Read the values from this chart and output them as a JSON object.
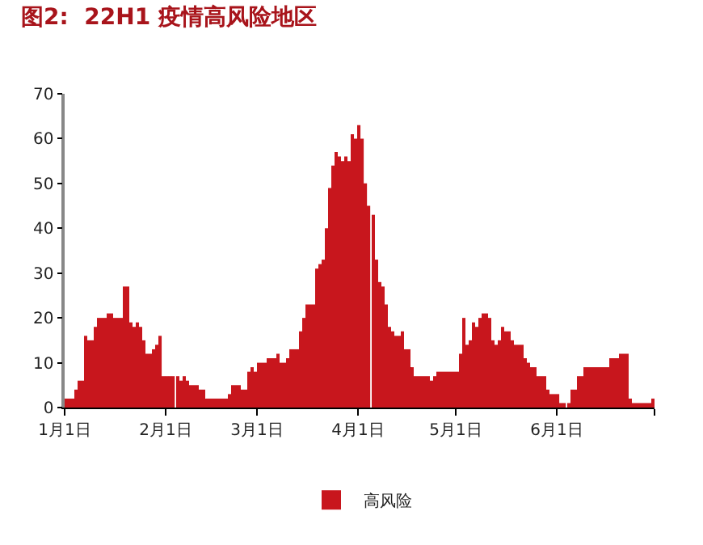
{
  "chart_data": {
    "type": "bar",
    "title": "图2:  22H1 疫情高风险地区",
    "x": [
      "--01-01",
      "--01-02",
      "--01-03",
      "--01-04",
      "--01-05",
      "--01-06",
      "--01-07",
      "--01-08",
      "--01-09",
      "--01-10",
      "--01-11",
      "--01-12",
      "--01-13",
      "--01-14",
      "--01-15",
      "--01-16",
      "--01-17",
      "--01-18",
      "--01-19",
      "--01-20",
      "--01-21",
      "--01-22",
      "--01-23",
      "--01-24",
      "--01-25",
      "--01-26",
      "--01-27",
      "--01-28",
      "--01-29",
      "--01-30",
      "--01-31",
      "--02-01",
      "--02-02",
      "--02-03",
      "--02-04",
      "--02-05",
      "--02-06",
      "--02-07",
      "--02-08",
      "--02-09",
      "--02-10",
      "--02-11",
      "--02-12",
      "--02-13",
      "--02-14",
      "--02-15",
      "--02-16",
      "--02-17",
      "--02-18",
      "--02-19",
      "--02-20",
      "--02-21",
      "--02-22",
      "--02-23",
      "--02-24",
      "--02-25",
      "--02-26",
      "--02-27",
      "--02-28",
      "--03-01",
      "--03-02",
      "--03-03",
      "--03-04",
      "--03-05",
      "--03-06",
      "--03-07",
      "--03-08",
      "--03-09",
      "--03-10",
      "--03-11",
      "--03-12",
      "--03-13",
      "--03-14",
      "--03-15",
      "--03-16",
      "--03-17",
      "--03-18",
      "--03-19",
      "--03-20",
      "--03-21",
      "--03-22",
      "--03-23",
      "--03-24",
      "--03-25",
      "--03-26",
      "--03-27",
      "--03-28",
      "--03-29",
      "--03-30",
      "--03-31",
      "--04-01",
      "--04-02",
      "--04-03",
      "--04-04",
      "--04-05",
      "--04-06",
      "--04-07",
      "--04-08",
      "--04-09",
      "--04-10",
      "--04-11",
      "--04-12",
      "--04-13",
      "--04-14",
      "--04-15",
      "--04-16",
      "--04-17",
      "--04-18",
      "--04-19",
      "--04-20",
      "--04-21",
      "--04-22",
      "--04-23",
      "--04-24",
      "--04-25",
      "--04-26",
      "--04-27",
      "--04-28",
      "--04-29",
      "--04-30",
      "--05-01",
      "--05-02",
      "--05-03",
      "--05-04",
      "--05-05",
      "--05-06",
      "--05-07",
      "--05-08",
      "--05-09",
      "--05-10",
      "--05-11",
      "--05-12",
      "--05-13",
      "--05-14",
      "--05-15",
      "--05-16",
      "--05-17",
      "--05-18",
      "--05-19",
      "--05-20",
      "--05-21",
      "--05-22",
      "--05-23",
      "--05-24",
      "--05-25",
      "--05-26",
      "--05-27",
      "--05-28",
      "--05-29",
      "--05-30",
      "--05-31",
      "--06-01",
      "--06-02",
      "--06-03",
      "--06-04",
      "--06-05",
      "--06-06",
      "--06-07",
      "--06-08",
      "--06-09",
      "--06-10",
      "--06-11",
      "--06-12",
      "--06-13",
      "--06-14",
      "--06-15",
      "--06-16",
      "--06-17",
      "--06-18",
      "--06-19",
      "--06-20",
      "--06-21",
      "--06-22",
      "--06-23",
      "--06-24",
      "--06-25",
      "--06-26",
      "--06-27",
      "--06-28",
      "--06-29",
      "--06-30"
    ],
    "series": [
      {
        "name": "高风险",
        "color": "#c8161d",
        "values": [
          2,
          2,
          2,
          4,
          6,
          6,
          16,
          15,
          15,
          18,
          20,
          20,
          20,
          21,
          21,
          20,
          20,
          20,
          27,
          27,
          19,
          18,
          19,
          18,
          15,
          12,
          12,
          13,
          14,
          16,
          7,
          7,
          7,
          7,
          7,
          6,
          7,
          6,
          5,
          5,
          5,
          4,
          4,
          2,
          2,
          2,
          2,
          2,
          2,
          2,
          3,
          5,
          5,
          5,
          4,
          4,
          8,
          9,
          8,
          10,
          10,
          10,
          11,
          11,
          11,
          12,
          10,
          10,
          11,
          13,
          13,
          13,
          17,
          20,
          23,
          23,
          23,
          31,
          32,
          33,
          40,
          49,
          54,
          57,
          56,
          55,
          56,
          55,
          61,
          60,
          63,
          60,
          50,
          45,
          43,
          33,
          28,
          27,
          23,
          18,
          17,
          16,
          16,
          17,
          13,
          13,
          9,
          7,
          7,
          7,
          7,
          7,
          6,
          7,
          8,
          8,
          8,
          8,
          8,
          8,
          8,
          12,
          20,
          14,
          15,
          19,
          18,
          20,
          21,
          21,
          20,
          15,
          14,
          15,
          18,
          17,
          17,
          15,
          14,
          14,
          14,
          11,
          10,
          9,
          9,
          7,
          7,
          7,
          4,
          3,
          3,
          3,
          1,
          1,
          1,
          4,
          4,
          7,
          7,
          9,
          9,
          9,
          9,
          9,
          9,
          9,
          9,
          11,
          11,
          11,
          12,
          12,
          12,
          2,
          1,
          1,
          1,
          1,
          1,
          1,
          2
        ]
      }
    ],
    "xlim": [
      "--01-01",
      "--07-01"
    ],
    "xticks": [
      {
        "value": "--01-01",
        "label": "1月1日"
      },
      {
        "value": "--02-01",
        "label": "2月1日"
      },
      {
        "value": "--03-01",
        "label": "3月1日"
      },
      {
        "value": "--04-01",
        "label": "4月1日"
      },
      {
        "value": "--05-01",
        "label": "5月1日"
      },
      {
        "value": "--06-01",
        "label": "6月1日"
      },
      {
        "value": "--07-01",
        "label": null
      }
    ],
    "ylim": [
      0,
      70
    ],
    "yticks": [
      0,
      10,
      20,
      30,
      40,
      50,
      60,
      70
    ],
    "legend": "bottom"
  }
}
